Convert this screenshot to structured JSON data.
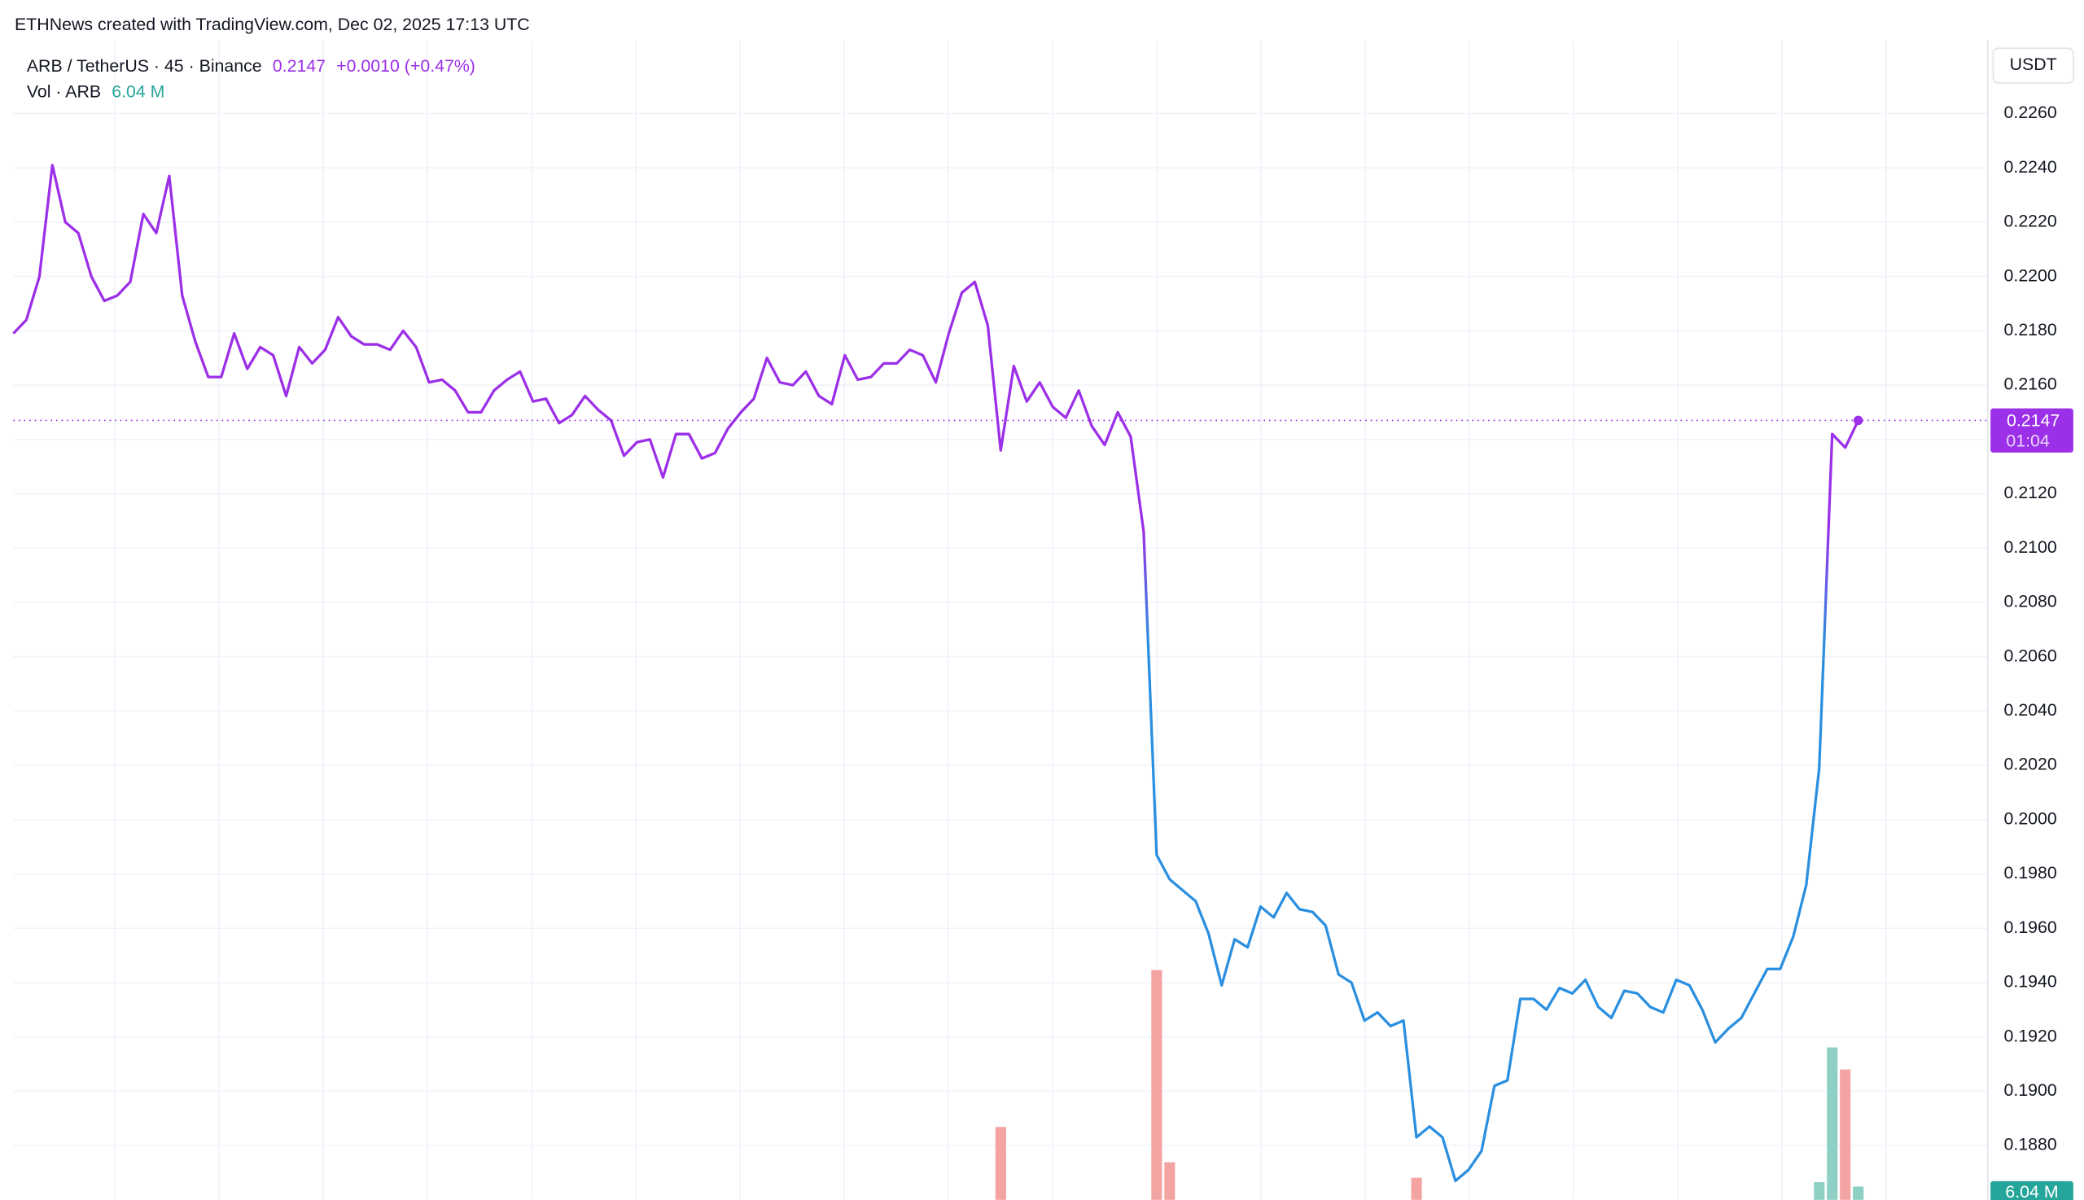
{
  "chart_data": {
    "type": "line",
    "title": "ETHNews created with TradingView.com, Dec 02, 2025 17:13 UTC",
    "symbol": "ARB / TetherUS · 45 · Binance",
    "change": "+0.0010 (+0.47%)",
    "countdown": "01:04",
    "y_axis_label": "USDT",
    "colors": [
      "#9c2fe8",
      "#2b8fe0"
    ],
    "series": [
      {
        "name": "ARB / TetherUS",
        "values": [
          0.2179,
          0.2184,
          0.22,
          0.2241,
          0.222,
          0.2216,
          0.22,
          0.2191,
          0.2193,
          0.2198,
          0.2223,
          0.2216,
          0.2237,
          0.2193,
          0.2176,
          0.2163,
          0.2163,
          0.2179,
          0.2166,
          0.2174,
          0.2171,
          0.2156,
          0.2174,
          0.2168,
          0.2173,
          0.2185,
          0.2178,
          0.2175,
          0.2175,
          0.2173,
          0.218,
          0.2174,
          0.2161,
          0.2162,
          0.2158,
          0.215,
          0.215,
          0.2158,
          0.2162,
          0.2165,
          0.2154,
          0.2155,
          0.2146,
          0.2149,
          0.2156,
          0.2151,
          0.2147,
          0.2134,
          0.2139,
          0.214,
          0.2126,
          0.2142,
          0.2142,
          0.2133,
          0.2135,
          0.2144,
          0.215,
          0.2155,
          0.217,
          0.2161,
          0.216,
          0.2165,
          0.2156,
          0.2153,
          0.2171,
          0.2162,
          0.2163,
          0.2168,
          0.2168,
          0.2173,
          0.2171,
          0.2161,
          0.2179,
          0.2194,
          0.2198,
          0.2182,
          0.2136,
          0.2167,
          0.2154,
          0.2161,
          0.2152,
          0.2148,
          0.2158,
          0.2145,
          0.2138,
          0.215,
          0.2141,
          0.2106,
          0.1987,
          0.1978,
          0.1974,
          0.197,
          0.1958,
          0.1939,
          0.1956,
          0.1953,
          0.1968,
          0.1964,
          0.1973,
          0.1967,
          0.1966,
          0.1961,
          0.1943,
          0.194,
          0.1926,
          0.1929,
          0.1924,
          0.1926,
          0.1883,
          0.1887,
          0.1883,
          0.1867,
          0.1871,
          0.1878,
          0.1902,
          0.1904,
          0.1934,
          0.1934,
          0.193,
          0.1938,
          0.1936,
          0.1941,
          0.1931,
          0.1927,
          0.1937,
          0.1936,
          0.1931,
          0.1929,
          0.1941,
          0.1939,
          0.193,
          0.1918,
          0.1923,
          0.1927,
          0.1936,
          0.1945,
          0.1945,
          0.1957,
          0.1976,
          0.2019,
          0.2142,
          0.2137,
          0.2147
        ]
      }
    ],
    "volume": {
      "name": "Vol · ARB",
      "last_label": "6.04 M",
      "x": [
        76,
        88,
        89,
        108,
        139,
        140,
        141,
        142
      ],
      "values": [
        33,
        104,
        17,
        10,
        8,
        69,
        59,
        6.04
      ],
      "colors": [
        "#f4a3a3",
        "#f4a3a3",
        "#f4a3a3",
        "#f4a3a3",
        "#8fd0c4",
        "#8fd0c4",
        "#f4a3a3",
        "#8fd0c4"
      ]
    },
    "ylim": [
      0.186,
      0.2287
    ],
    "yticks": [
      {
        "value": 0.188,
        "label": "0.1880"
      },
      {
        "value": 0.19,
        "label": "0.1900"
      },
      {
        "value": 0.192,
        "label": "0.1920"
      },
      {
        "value": 0.194,
        "label": "0.1940"
      },
      {
        "value": 0.196,
        "label": "0.1960"
      },
      {
        "value": 0.198,
        "label": "0.1980"
      },
      {
        "value": 0.2,
        "label": "0.2000"
      },
      {
        "value": 0.202,
        "label": "0.2020"
      },
      {
        "value": 0.204,
        "label": "0.2040"
      },
      {
        "value": 0.206,
        "label": "0.2060"
      },
      {
        "value": 0.208,
        "label": "0.2080"
      },
      {
        "value": 0.21,
        "label": "0.2100"
      },
      {
        "value": 0.212,
        "label": "0.2120"
      },
      {
        "value": 0.214,
        "label": "0.2140"
      },
      {
        "value": 0.216,
        "label": "0.2160"
      },
      {
        "value": 0.218,
        "label": "0.2180"
      },
      {
        "value": 0.22,
        "label": "0.2200"
      },
      {
        "value": 0.222,
        "label": "0.2220"
      },
      {
        "value": 0.224,
        "label": "0.2240"
      },
      {
        "value": 0.226,
        "label": "0.2260"
      }
    ],
    "grid": true
  }
}
